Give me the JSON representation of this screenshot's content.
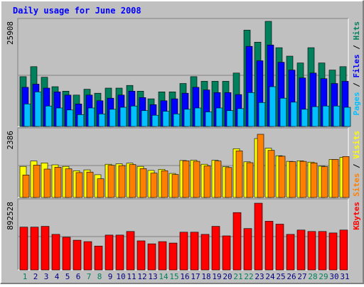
{
  "chart_data": {
    "type": "bar",
    "title": "Daily usage for June 2008",
    "categories": [
      "1",
      "2",
      "3",
      "4",
      "5",
      "6",
      "7",
      "8",
      "9",
      "10",
      "11",
      "12",
      "13",
      "14",
      "15",
      "16",
      "17",
      "18",
      "19",
      "20",
      "21",
      "22",
      "23",
      "24",
      "25",
      "26",
      "27",
      "28",
      "29",
      "30",
      "31"
    ],
    "weekend_days": [
      1,
      7,
      8,
      14,
      15,
      21,
      22,
      28,
      29
    ],
    "colors": {
      "background": "#C0C0C0",
      "title": "#0000FF",
      "hits": "#00805C",
      "files": "#0000FF",
      "pages": "#00C0FF",
      "visits": "#FFFF00",
      "sites": "#FF8000",
      "kbytes": "#FF0000",
      "weekday_label": "#000080",
      "weekend_label": "#00805C"
    },
    "panels": [
      {
        "id": "hits-files-pages",
        "ymax_label": "25908",
        "ymax": 25908,
        "side_label": [
          {
            "text": "Pages",
            "series": "pages"
          },
          {
            "text": " / ",
            "series": null
          },
          {
            "text": "Files",
            "series": "files"
          },
          {
            "text": " / ",
            "series": null
          },
          {
            "text": "Hits",
            "series": "hits"
          }
        ],
        "series": [
          {
            "name": "Hits",
            "key": "hits",
            "values": [
              12620,
              15140,
              12460,
              10080,
              8950,
              7950,
              9420,
              8420,
              9720,
              9720,
              10400,
              8950,
              6990,
              8760,
              8760,
              10880,
              12620,
              11440,
              11440,
              11440,
              13530,
              24390,
              21360,
              26630,
              19960,
              17810,
              16080,
              19960,
              16080,
              14280,
              15140
            ]
          },
          {
            "name": "Files",
            "key": "files",
            "values": [
              9910,
              10720,
              9720,
              8760,
              7950,
              5700,
              7950,
              6510,
              7160,
              7950,
              8950,
              7330,
              5530,
              6510,
              6990,
              8420,
              9910,
              9240,
              8590,
              8590,
              8080,
              20300,
              16650,
              20620,
              16270,
              14280,
              12280,
              13530,
              12100,
              10880,
              11440
            ]
          },
          {
            "name": "Pages",
            "key": "pages",
            "values": [
              5700,
              8760,
              5190,
              4680,
              4180,
              3010,
              4680,
              3180,
              4350,
              4850,
              5190,
              4010,
              2840,
              3850,
              3180,
              4350,
              4680,
              3690,
              4680,
              4010,
              4510,
              8590,
              6060,
              10080,
              7160,
              6150,
              4350,
              5020,
              5190,
              5190,
              4850
            ]
          }
        ]
      },
      {
        "id": "visits-sites",
        "ymax_label": "2386",
        "ymax": 2386,
        "side_label": [
          {
            "text": "Sites",
            "series": "sites"
          },
          {
            "text": " / ",
            "series": null
          },
          {
            "text": "Visits",
            "series": "visits"
          }
        ],
        "series": [
          {
            "name": "Visits",
            "key": "visits",
            "values": [
              1160,
              1360,
              1290,
              1220,
              1160,
              1000,
              1030,
              850,
              1240,
              1260,
              1280,
              1160,
              1010,
              1050,
              900,
              1380,
              1390,
              1240,
              1390,
              1150,
              1820,
              1330,
              2200,
              1840,
              1560,
              1350,
              1370,
              1320,
              1170,
              1420,
              1500
            ]
          },
          {
            "name": "Sites",
            "key": "sites",
            "values": [
              840,
              1210,
              1060,
              1130,
              1070,
              930,
              950,
              700,
              1200,
              1190,
              1230,
              1080,
              910,
              1000,
              860,
              1370,
              1350,
              1180,
              1360,
              1120,
              1740,
              1300,
              2360,
              1760,
              1540,
              1340,
              1350,
              1290,
              1150,
              1420,
              1530
            ]
          }
        ]
      },
      {
        "id": "kbytes",
        "ymax_label": "892528",
        "ymax": 892528,
        "side_label": [
          {
            "text": "KBytes",
            "series": "kbytes"
          }
        ],
        "series": [
          {
            "name": "KBytes",
            "key": "kbytes",
            "values": [
              573000,
              573000,
              583000,
              476000,
              438000,
              398000,
              379000,
              320000,
              466000,
              466000,
              515000,
              389000,
              349000,
              379000,
              360000,
              505000,
              505000,
              476000,
              583000,
              456000,
              767000,
              554000,
              893000,
              651000,
              612000,
              476000,
              534000,
              515000,
              515000,
              495000,
              534000
            ]
          }
        ]
      }
    ]
  }
}
